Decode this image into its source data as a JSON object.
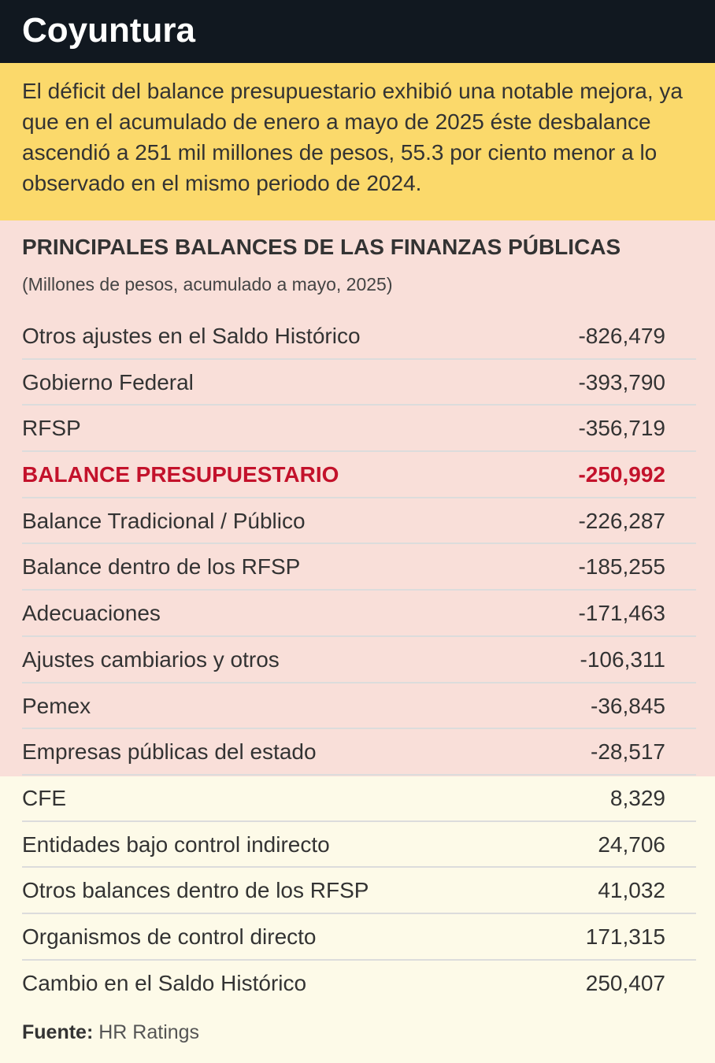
{
  "header": {
    "title": "Coyuntura"
  },
  "summary": "El déficit del balance presupuestario exhibió una notable mejora, ya que en el acumulado de enero a mayo de 2025 éste desbalance ascendió a 251 mil millones de pesos, 55.3 por ciento menor a lo observado en el mismo periodo de 2024.",
  "table": {
    "title": "PRINCIPALES BALANCES DE LAS FINANZAS PÚBLICAS",
    "subtitle": "(Millones de pesos, acumulado a mayo, 2025)",
    "rows": [
      [
        "Otros ajustes en el Saldo Histórico",
        "-826,479"
      ],
      [
        "Gobierno Federal",
        "-393,790"
      ],
      [
        "RFSP",
        "-356,719"
      ],
      [
        "BALANCE PRESUPUESTARIO",
        "-250,992"
      ],
      [
        "Balance Tradicional / Público",
        "-226,287"
      ],
      [
        "Balance dentro de los RFSP",
        "-185,255"
      ],
      [
        "Adecuaciones",
        "-171,463"
      ],
      [
        "Ajustes cambiarios y otros",
        "-106,311"
      ],
      [
        "Pemex",
        "-36,845"
      ],
      [
        "Empresas públicas del estado",
        "-28,517"
      ],
      [
        "CFE",
        "8,329"
      ],
      [
        "Entidades bajo control indirecto",
        "24,706"
      ],
      [
        "Otros balances dentro de los RFSP",
        "41,032"
      ],
      [
        "Organismos de control directo",
        "171,315"
      ],
      [
        "Cambio en el Saldo Histórico",
        "250,407"
      ]
    ]
  },
  "source": {
    "label": "Fuente:",
    "text": "HR Ratings"
  }
}
